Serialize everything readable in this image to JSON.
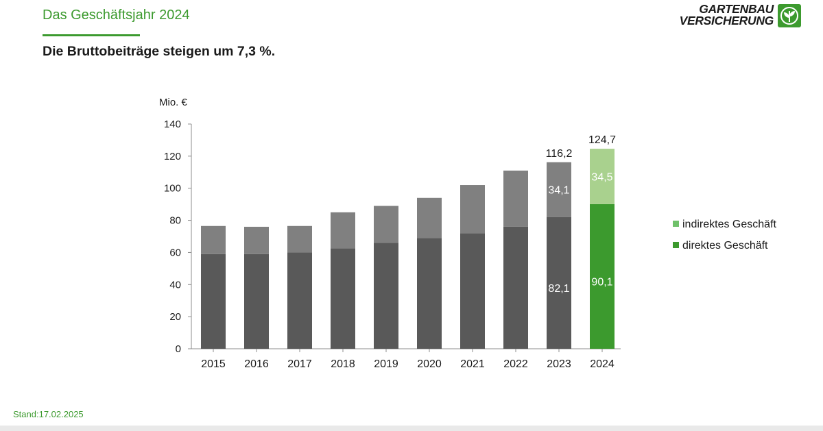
{
  "header": {
    "section_title": "Das Geschäftsjahr 2024",
    "headline": "Die Bruttobeiträge steigen um 7,3 %.",
    "logo_line1": "GARTENBAU",
    "logo_line2": "VERSICHERUNG"
  },
  "footer": {
    "stand": "Stand:17.02.2025"
  },
  "colors": {
    "accent": "#3c9a2e",
    "direct_hist": "#595959",
    "indirect_hist": "#808080",
    "direct_2024": "#3c9a2e",
    "indirect_2024": "#a9d18e"
  },
  "chart_data": {
    "type": "bar",
    "stacked": true,
    "unit_label": "Mio. €",
    "categories": [
      "2015",
      "2016",
      "2017",
      "2018",
      "2019",
      "2020",
      "2021",
      "2022",
      "2023",
      "2024"
    ],
    "series": [
      {
        "name": "direktes Geschäft",
        "values": [
          59,
          59,
          60,
          62.5,
          66,
          69,
          72,
          76,
          82.1,
          90.1
        ]
      },
      {
        "name": "indirektes Geschäft",
        "values": [
          17.5,
          17,
          16.5,
          22.5,
          23,
          25,
          30,
          35,
          34.1,
          34.5
        ]
      }
    ],
    "totals": [
      76.5,
      76,
      76.5,
      85,
      89,
      94,
      102,
      111,
      116.2,
      124.7
    ],
    "value_labels": {
      "2023": {
        "direct": "82,1",
        "indirect": "34,1",
        "total": "116,2"
      },
      "2024": {
        "direct": "90,1",
        "indirect": "34,5",
        "total": "124,7"
      }
    },
    "ylim": [
      0,
      140
    ],
    "yticks": [
      0,
      20,
      40,
      60,
      80,
      100,
      120,
      140
    ],
    "legend_position": "right",
    "legend": [
      "indirektes Geschäft",
      "direktes Geschäft"
    ],
    "grid": false
  }
}
